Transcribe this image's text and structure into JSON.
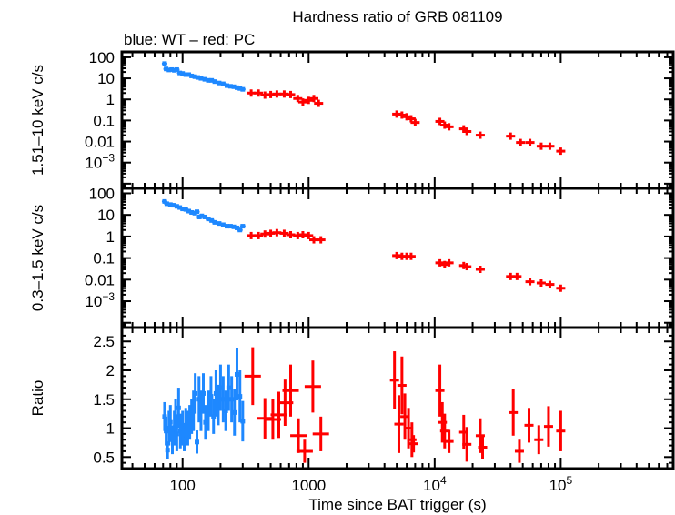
{
  "chart_data": {
    "type": "scatter",
    "title": "Hardness ratio of GRB 081109",
    "subtitle": "blue: WT – red: PC",
    "xlabel": "Time since BAT trigger (s)",
    "xscale": "log",
    "xlim": [
      33,
      780000
    ],
    "xticks": [
      {
        "v": 100,
        "label": "100"
      },
      {
        "v": 1000,
        "label": "1000"
      },
      {
        "v": 10000,
        "label": "10",
        "sup": "4"
      },
      {
        "v": 100000,
        "label": "10",
        "sup": "5"
      }
    ],
    "colors": {
      "WT": "#1e88ff",
      "PC": "#ff0000"
    },
    "panels": [
      {
        "id": "hard",
        "ylabel": "1.51–10 keV c/s",
        "yscale": "log",
        "ylim": [
          6e-05,
          180
        ],
        "yticks": [
          {
            "v": 100,
            "label": "100"
          },
          {
            "v": 10,
            "label": "10"
          },
          {
            "v": 1,
            "label": "1"
          },
          {
            "v": 0.1,
            "label": "0.1"
          },
          {
            "v": 0.01,
            "label": "0.01"
          },
          {
            "v": 0.001,
            "label": "10",
            "sup": "−3"
          }
        ],
        "series": [
          {
            "mode": "WT",
            "points": [
              [
                72,
                50
              ],
              [
                74,
                28
              ],
              [
                78,
                25
              ],
              [
                82,
                26
              ],
              [
                86,
                24
              ],
              [
                90,
                26
              ],
              [
                95,
                18
              ],
              [
                100,
                17
              ],
              [
                106,
                15
              ],
              [
                112,
                15
              ],
              [
                118,
                13
              ],
              [
                125,
                12
              ],
              [
                132,
                11
              ],
              [
                140,
                10
              ],
              [
                150,
                9
              ],
              [
                160,
                8
              ],
              [
                170,
                8
              ],
              [
                180,
                7
              ],
              [
                195,
                6
              ],
              [
                210,
                5.5
              ],
              [
                225,
                4.5
              ],
              [
                240,
                4.2
              ],
              [
                255,
                4
              ],
              [
                270,
                3.6
              ],
              [
                285,
                3.3
              ],
              [
                300,
                3
              ]
            ]
          },
          {
            "mode": "PC",
            "points": [
              [
                350,
                2
              ],
              [
                400,
                2
              ],
              [
                450,
                1.6
              ],
              [
                500,
                1.7
              ],
              [
                560,
                1.8
              ],
              [
                640,
                1.8
              ],
              [
                720,
                1.7
              ],
              [
                820,
                1.1
              ],
              [
                900,
                0.75
              ],
              [
                1000,
                0.9
              ],
              [
                1100,
                1.1
              ],
              [
                1200,
                0.65
              ],
              [
                5000,
                0.2
              ],
              [
                5500,
                0.18
              ],
              [
                6000,
                0.15
              ],
              [
                6500,
                0.12
              ],
              [
                7000,
                0.08
              ],
              [
                11000,
                0.09
              ],
              [
                12000,
                0.06
              ],
              [
                13000,
                0.05
              ],
              [
                17000,
                0.04
              ],
              [
                18000,
                0.03
              ],
              [
                23000,
                0.02
              ],
              [
                40000,
                0.018
              ],
              [
                48000,
                0.009
              ],
              [
                57000,
                0.009
              ],
              [
                70000,
                0.006
              ],
              [
                82000,
                0.006
              ],
              [
                100000,
                0.0035
              ]
            ]
          }
        ]
      },
      {
        "id": "soft",
        "ylabel": "0.3–1.5 keV c/s",
        "yscale": "log",
        "ylim": [
          6e-05,
          170
        ],
        "yticks": [
          {
            "v": 100,
            "label": "100"
          },
          {
            "v": 10,
            "label": "10"
          },
          {
            "v": 1,
            "label": "1"
          },
          {
            "v": 0.1,
            "label": "0.1"
          },
          {
            "v": 0.01,
            "label": "0.01"
          },
          {
            "v": 0.001,
            "label": "10",
            "sup": "−3"
          }
        ],
        "series": [
          {
            "mode": "WT",
            "points": [
              [
                72,
                42
              ],
              [
                75,
                33
              ],
              [
                80,
                30
              ],
              [
                85,
                28
              ],
              [
                90,
                25
              ],
              [
                95,
                22
              ],
              [
                100,
                19
              ],
              [
                106,
                18
              ],
              [
                112,
                15
              ],
              [
                118,
                13
              ],
              [
                125,
                12
              ],
              [
                130,
                14
              ],
              [
                136,
                8
              ],
              [
                142,
                9
              ],
              [
                150,
                8
              ],
              [
                160,
                6.5
              ],
              [
                170,
                5.5
              ],
              [
                180,
                4.5
              ],
              [
                195,
                4
              ],
              [
                210,
                3.5
              ],
              [
                225,
                3
              ],
              [
                240,
                3
              ],
              [
                255,
                2.8
              ],
              [
                270,
                2.5
              ],
              [
                285,
                2
              ],
              [
                300,
                3
              ]
            ]
          },
          {
            "mode": "PC",
            "points": [
              [
                350,
                1.1
              ],
              [
                400,
                1.1
              ],
              [
                450,
                1.3
              ],
              [
                500,
                1.4
              ],
              [
                560,
                1.5
              ],
              [
                640,
                1.4
              ],
              [
                720,
                1.2
              ],
              [
                820,
                1.1
              ],
              [
                900,
                1.2
              ],
              [
                1000,
                1.1
              ],
              [
                1100,
                0.7
              ],
              [
                1250,
                0.7
              ],
              [
                5000,
                0.13
              ],
              [
                5500,
                0.12
              ],
              [
                6000,
                0.12
              ],
              [
                6500,
                0.12
              ],
              [
                11000,
                0.06
              ],
              [
                12000,
                0.05
              ],
              [
                13000,
                0.06
              ],
              [
                17000,
                0.045
              ],
              [
                18000,
                0.04
              ],
              [
                23000,
                0.03
              ],
              [
                40000,
                0.014
              ],
              [
                45000,
                0.014
              ],
              [
                57000,
                0.008
              ],
              [
                70000,
                0.007
              ],
              [
                82000,
                0.006
              ],
              [
                100000,
                0.004
              ]
            ]
          }
        ]
      },
      {
        "id": "ratio",
        "ylabel": "Ratio",
        "yscale": "linear",
        "ylim": [
          0.3,
          2.74
        ],
        "yticks": [
          {
            "v": 0.5,
            "label": "0.5"
          },
          {
            "v": 1,
            "label": "1"
          },
          {
            "v": 1.5,
            "label": "1.5"
          },
          {
            "v": 2,
            "label": "2"
          },
          {
            "v": 2.5,
            "label": "2.5"
          }
        ],
        "series": [
          {
            "mode": "WT",
            "points": [
              [
                72,
                1.2,
                0.25
              ],
              [
                74,
                0.95,
                0.25
              ],
              [
                76,
                0.62,
                0.15
              ],
              [
                78,
                1.0,
                0.3
              ],
              [
                80,
                1.1,
                0.3
              ],
              [
                83,
                0.8,
                0.25
              ],
              [
                86,
                1.0,
                0.3
              ],
              [
                88,
                1.2,
                0.3
              ],
              [
                90,
                0.9,
                0.3
              ],
              [
                93,
                1.35,
                0.35
              ],
              [
                96,
                0.95,
                0.3
              ],
              [
                100,
                1.0,
                0.3
              ],
              [
                103,
                0.8,
                0.2
              ],
              [
                106,
                1.05,
                0.3
              ],
              [
                110,
                1.0,
                0.3
              ],
              [
                114,
                1.1,
                0.3
              ],
              [
                118,
                1.2,
                0.3
              ],
              [
                122,
                1.3,
                0.35
              ],
              [
                126,
                1.6,
                0.35
              ],
              [
                130,
                0.76,
                0.2
              ],
              [
                135,
                1.5,
                0.4
              ],
              [
                140,
                1.3,
                0.35
              ],
              [
                146,
                1.6,
                0.35
              ],
              [
                152,
                1.1,
                0.3
              ],
              [
                160,
                1.3,
                0.35
              ],
              [
                168,
                1.55,
                0.35
              ],
              [
                176,
                1.2,
                0.3
              ],
              [
                184,
                1.6,
                0.4
              ],
              [
                192,
                1.4,
                0.35
              ],
              [
                200,
                1.7,
                0.4
              ],
              [
                210,
                1.5,
                0.4
              ],
              [
                220,
                1.3,
                0.35
              ],
              [
                232,
                1.7,
                0.4
              ],
              [
                245,
                1.5,
                0.4
              ],
              [
                258,
                1.27,
                0.4
              ],
              [
                270,
                1.93,
                0.45
              ],
              [
                285,
                1.55,
                0.45
              ],
              [
                300,
                1.12,
                0.35
              ]
            ]
          },
          {
            "mode": "PC",
            "points": [
              [
                360,
                1.9,
                0.5
              ],
              [
                450,
                1.17,
                0.35
              ],
              [
                520,
                1.15,
                0.35
              ],
              [
                580,
                1.23,
                0.4
              ],
              [
                650,
                1.44,
                0.4
              ],
              [
                720,
                1.65,
                0.45
              ],
              [
                830,
                0.87,
                0.3
              ],
              [
                930,
                0.6,
                0.2
              ],
              [
                1080,
                1.72,
                0.45
              ],
              [
                1250,
                0.9,
                0.3
              ],
              [
                4800,
                1.83,
                0.5
              ],
              [
                5200,
                1.07,
                0.5
              ],
              [
                5500,
                1.74,
                0.5
              ],
              [
                5800,
                1.2,
                0.4
              ],
              [
                6200,
                1.0,
                0.35
              ],
              [
                6600,
                0.8,
                0.3
              ],
              [
                6800,
                0.73,
                0.15
              ],
              [
                11000,
                1.65,
                0.45
              ],
              [
                11500,
                1.1,
                0.35
              ],
              [
                12000,
                0.95,
                0.3
              ],
              [
                13000,
                0.77,
                0.2
              ],
              [
                17000,
                0.93,
                0.3
              ],
              [
                18000,
                0.72,
                0.3
              ],
              [
                23000,
                0.87,
                0.3
              ],
              [
                24000,
                0.67,
                0.2
              ],
              [
                42000,
                1.27,
                0.4
              ],
              [
                47000,
                0.6,
                0.2
              ],
              [
                56000,
                1.05,
                0.3
              ],
              [
                67000,
                0.8,
                0.25
              ],
              [
                80000,
                1.03,
                0.35
              ],
              [
                100000,
                0.95,
                0.35
              ]
            ]
          }
        ]
      }
    ]
  }
}
